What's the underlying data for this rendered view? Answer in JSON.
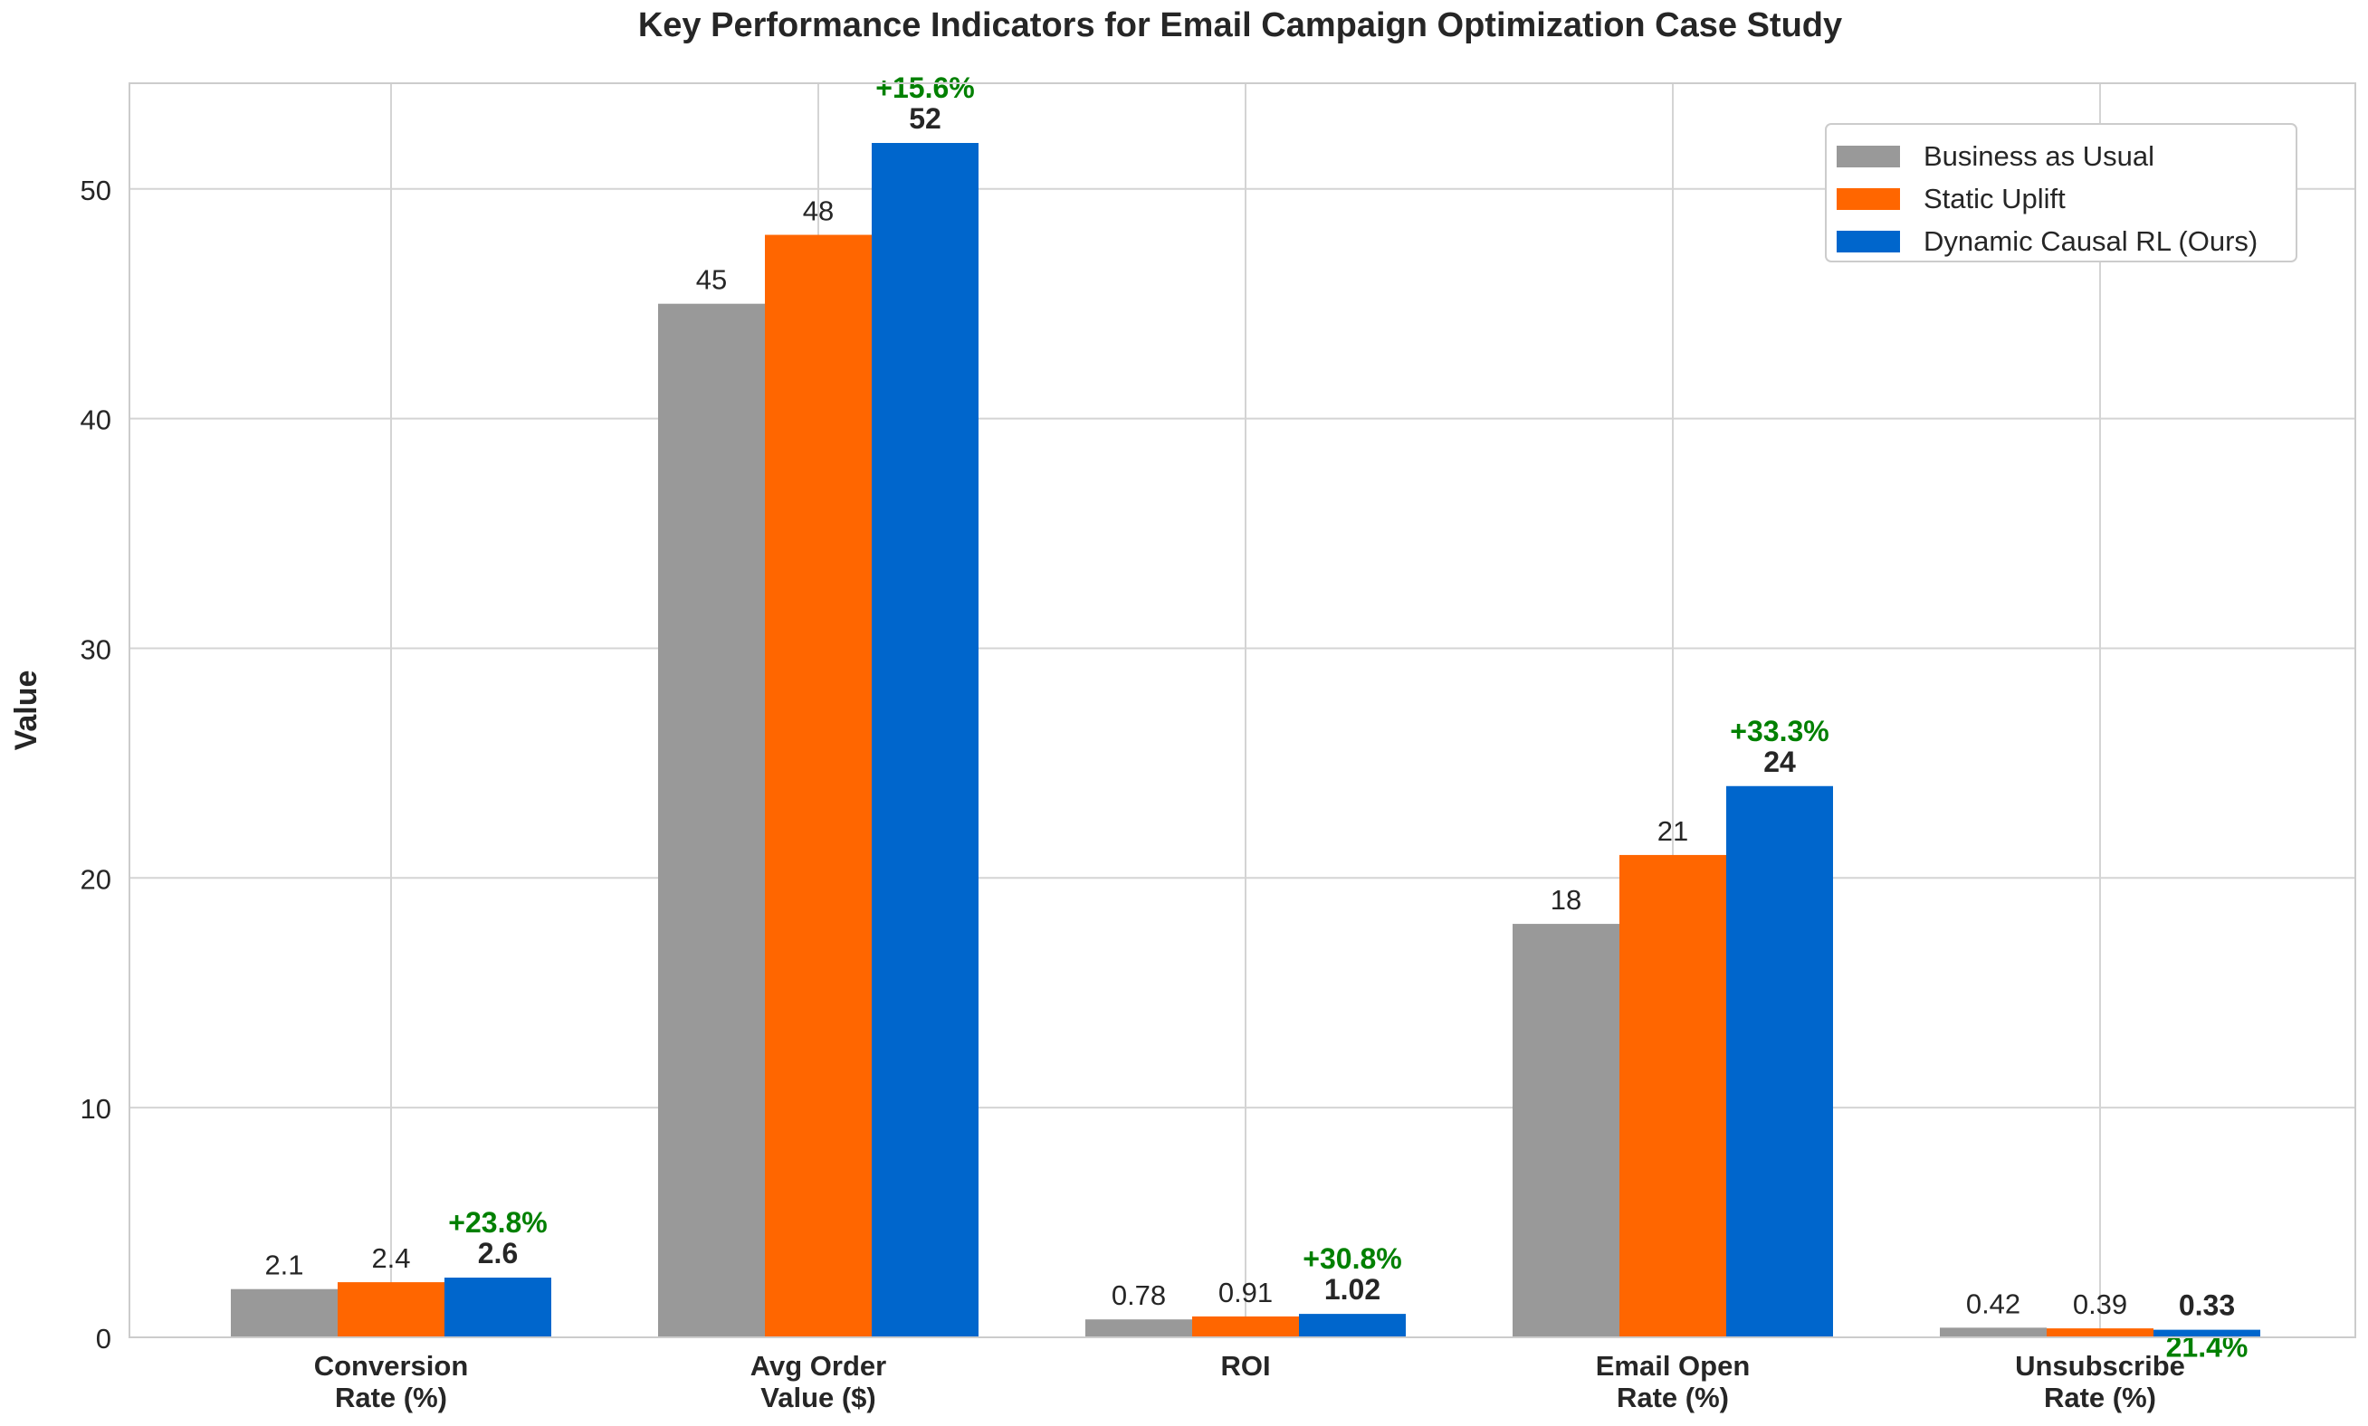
{
  "chart_data": {
    "type": "bar",
    "title": "Key Performance Indicators for Email Campaign Optimization Case Study",
    "xlabel": "",
    "ylabel": "Value",
    "ylim": [
      0,
      54.6
    ],
    "yticks": [
      0,
      10,
      20,
      30,
      40,
      50
    ],
    "grid": true,
    "legend_position": "top-right",
    "categories": [
      [
        "Conversion",
        "Rate (%)"
      ],
      [
        "Avg Order",
        "Value ($)"
      ],
      [
        "ROI"
      ],
      [
        "Email Open",
        "Rate (%)"
      ],
      [
        "Unsubscribe",
        "Rate (%)"
      ]
    ],
    "series": [
      {
        "name": "Business as Usual",
        "color": "#999999",
        "values": [
          2.1,
          45,
          0.78,
          18,
          0.42
        ],
        "labels": [
          "2.1",
          "45",
          "0.78",
          "18",
          "0.42"
        ]
      },
      {
        "name": "Static Uplift",
        "color": "#ff6600",
        "values": [
          2.4,
          48,
          0.91,
          21,
          0.39
        ],
        "labels": [
          "2.4",
          "48",
          "0.91",
          "21",
          "0.39"
        ]
      },
      {
        "name": "Dynamic Causal RL (Ours)",
        "color": "#0066cc",
        "values": [
          2.6,
          52,
          1.02,
          24,
          0.33
        ],
        "labels": [
          "2.6",
          "52",
          "1.02",
          "24",
          "0.33"
        ]
      }
    ],
    "improvements": [
      "+23.8%",
      "+15.6%",
      "+30.8%",
      "+33.3%",
      "21.4%"
    ],
    "improvement_color": "#008000"
  }
}
